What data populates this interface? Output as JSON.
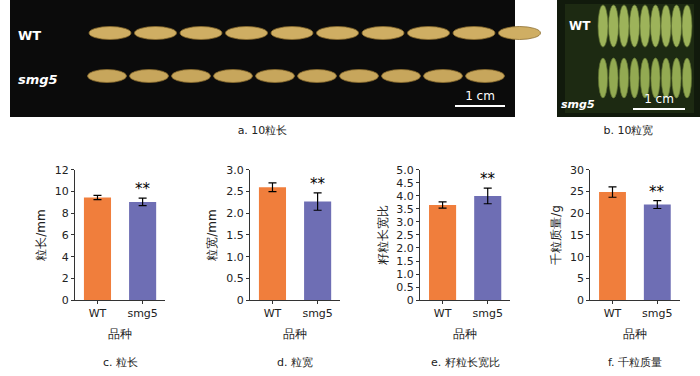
{
  "photos": [
    {
      "caption": "a. 10粒长",
      "labels": [
        "WT",
        "smg5"
      ],
      "scale_bar": "1 cm"
    },
    {
      "caption": "b. 10粒宽",
      "labels": [
        "WT",
        "smg5"
      ],
      "scale_bar": "1 cm"
    }
  ],
  "chart_data": [
    {
      "type": "bar",
      "caption": "c. 粒长",
      "categories": [
        "WT",
        "smg5"
      ],
      "values": [
        9.45,
        9.05
      ],
      "errors": [
        0.2,
        0.35
      ],
      "colors": [
        "#f07e3c",
        "#6e6eb4"
      ],
      "xlabel": "品种",
      "ylabel": "粒长/mm",
      "ylim": [
        0,
        12
      ],
      "yticks": [
        0,
        2,
        4,
        6,
        8,
        10,
        12
      ],
      "annotations": [
        {
          "category": "smg5",
          "text": "**"
        }
      ],
      "grid": false
    },
    {
      "type": "bar",
      "caption": "d. 粒宽",
      "categories": [
        "WT",
        "smg5"
      ],
      "values": [
        2.6,
        2.27
      ],
      "errors": [
        0.1,
        0.2
      ],
      "colors": [
        "#f07e3c",
        "#6e6eb4"
      ],
      "xlabel": "品种",
      "ylabel": "粒宽/mm",
      "ylim": [
        0,
        3
      ],
      "yticks": [
        0,
        0.5,
        {
          "value": 1,
          "label": "1.0"
        },
        1.5,
        {
          "value": 2,
          "label": "2.0"
        },
        2.5,
        {
          "value": 3,
          "label": "3.0"
        }
      ],
      "annotations": [
        {
          "category": "smg5",
          "text": "**"
        }
      ],
      "grid": false
    },
    {
      "type": "bar",
      "caption": "e. 籽粒长宽比",
      "categories": [
        "WT",
        "smg5"
      ],
      "values": [
        3.65,
        4.0
      ],
      "errors": [
        0.12,
        0.3
      ],
      "colors": [
        "#f07e3c",
        "#6e6eb4"
      ],
      "xlabel": "品种",
      "ylabel": "籽粒长宽比",
      "ylim": [
        0,
        5
      ],
      "yticks": [
        0,
        0.5,
        {
          "value": 1,
          "label": "1.0"
        },
        1.5,
        {
          "value": 2,
          "label": "2.0"
        },
        2.5,
        {
          "value": 3,
          "label": "3.0"
        },
        3.5,
        {
          "value": 4,
          "label": "4.0"
        },
        4.5,
        {
          "value": 5,
          "label": "5.0"
        }
      ],
      "annotations": [
        {
          "category": "smg5",
          "text": "**"
        }
      ],
      "grid": false
    },
    {
      "type": "bar",
      "caption": "f. 千粒质量",
      "categories": [
        "WT",
        "smg5"
      ],
      "values": [
        24.9,
        22.0
      ],
      "errors": [
        1.2,
        0.9
      ],
      "colors": [
        "#f07e3c",
        "#6e6eb4"
      ],
      "xlabel": "品种",
      "ylabel": "千粒质量/g",
      "ylim": [
        0,
        30
      ],
      "yticks": [
        0,
        5,
        10,
        15,
        20,
        25,
        30
      ],
      "annotations": [
        {
          "category": "smg5",
          "text": "**"
        }
      ],
      "grid": false
    }
  ]
}
